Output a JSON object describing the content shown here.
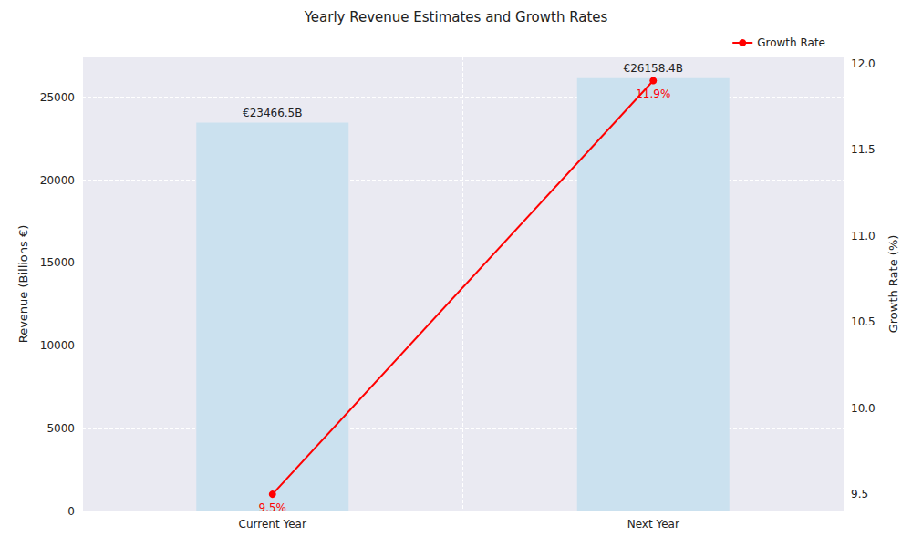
{
  "chart_data": {
    "type": "bar",
    "title": "Yearly Revenue Estimates and Growth Rates",
    "categories": [
      "Current Year",
      "Next Year"
    ],
    "x_label": null,
    "y_label": "Revenue (Billions €)",
    "y2_label": "Growth Rate (%)",
    "series": [
      {
        "type": "bar",
        "color": "#cbe1ef",
        "values": [
          23466.5,
          26158.4
        ],
        "value_labels": [
          "€23466.5B",
          "€26158.4B"
        ]
      },
      {
        "name": "Growth Rate",
        "type": "line",
        "axis": "y2",
        "color": "#ff0000",
        "marker": "circle",
        "line_style": "solid",
        "values": [
          9.5,
          11.9
        ],
        "value_labels": [
          "9.5%",
          "11.9%"
        ]
      }
    ],
    "ylim": [
      0,
      27460
    ],
    "yticks": [
      0,
      5000,
      10000,
      15000,
      20000,
      25000
    ],
    "y2lim": [
      9.4,
      12.04
    ],
    "y2ticks": [
      9.5,
      {
        "value": 10,
        "label": "10.0"
      },
      10.5,
      {
        "value": 11,
        "label": "11.0"
      },
      11.5,
      {
        "value": 12,
        "label": "12.0"
      }
    ],
    "grid": true,
    "legend": "upper right",
    "data_labels": true
  }
}
